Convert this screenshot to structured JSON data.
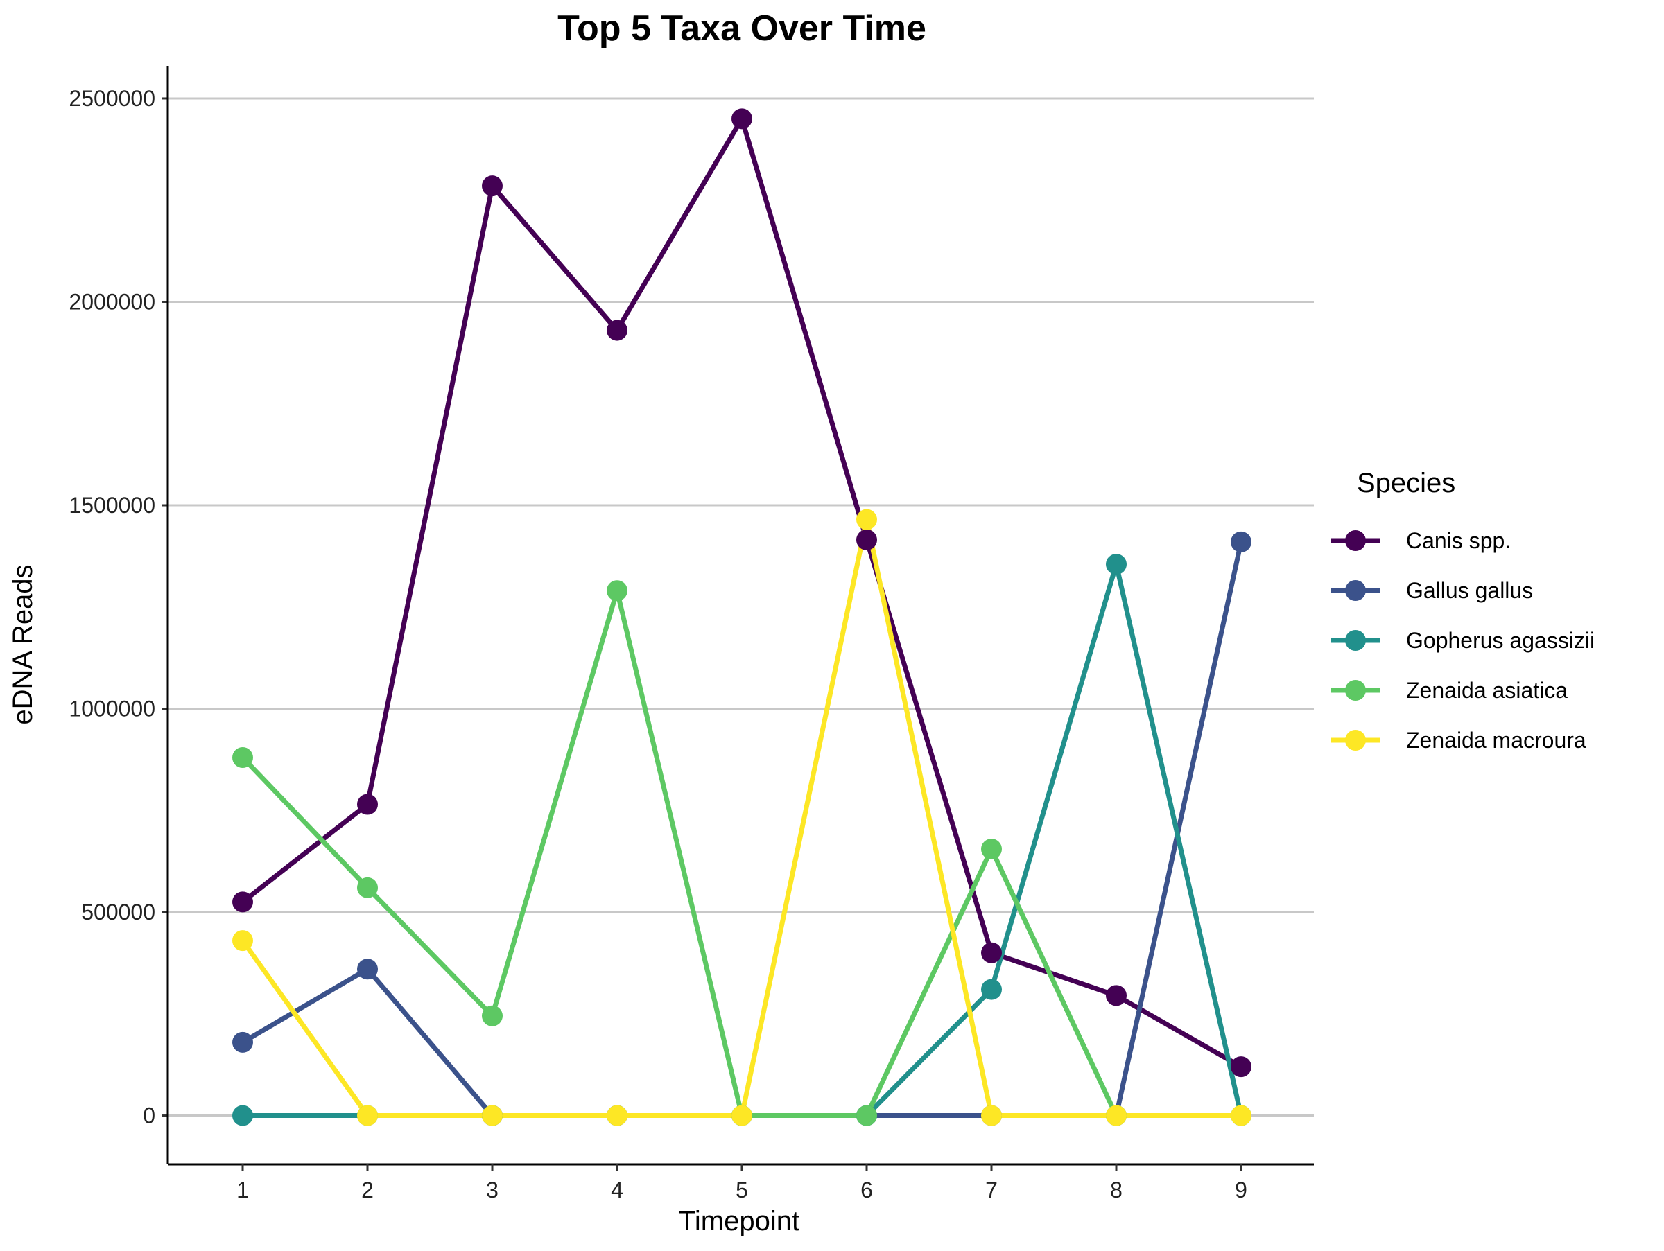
{
  "chart_data": {
    "type": "line",
    "title": "Top 5 Taxa Over Time",
    "xlabel": "Timepoint",
    "ylabel": "eDNA Reads",
    "x": [
      1,
      2,
      3,
      4,
      5,
      6,
      7,
      8,
      9
    ],
    "x_tick_labels": [
      "1",
      "2",
      "3",
      "4",
      "5",
      "6",
      "7",
      "8",
      "9"
    ],
    "ylim": [
      -120000,
      2580000
    ],
    "y_ticks": [
      0,
      500000,
      1000000,
      1500000,
      2000000,
      2500000
    ],
    "y_tick_labels": [
      "0",
      "500000",
      "1000000",
      "1500000",
      "2000000",
      "2500000"
    ],
    "grid": "horizontal-major",
    "legend": {
      "title": "Species",
      "placement": "right"
    },
    "series": [
      {
        "name": "Canis spp.",
        "color": "#440154",
        "values": [
          525000,
          765000,
          2285000,
          1930000,
          2450000,
          1415000,
          400000,
          295000,
          120000
        ]
      },
      {
        "name": "Gallus gallus",
        "color": "#3B528B",
        "values": [
          180000,
          360000,
          0,
          0,
          0,
          0,
          0,
          0,
          1410000
        ]
      },
      {
        "name": "Gopherus agassizii",
        "color": "#21908C",
        "values": [
          0,
          0,
          0,
          0,
          0,
          0,
          310000,
          1355000,
          0
        ]
      },
      {
        "name": "Zenaida asiatica",
        "color": "#5DC863",
        "values": [
          880000,
          560000,
          245000,
          1290000,
          0,
          0,
          655000,
          0,
          0
        ]
      },
      {
        "name": "Zenaida macroura",
        "color": "#FDE725",
        "values": [
          430000,
          0,
          0,
          0,
          0,
          1465000,
          0,
          0,
          0
        ]
      }
    ]
  }
}
